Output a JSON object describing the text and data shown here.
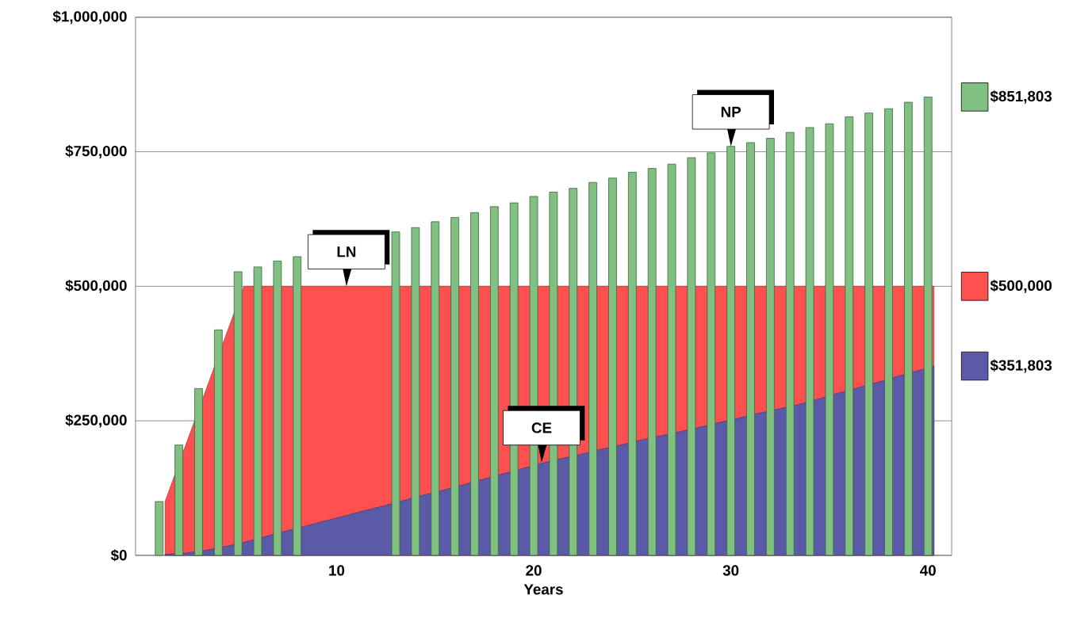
{
  "chart_data": {
    "type": "bar",
    "xlabel": "Years",
    "x": [
      1,
      2,
      3,
      4,
      5,
      6,
      7,
      8,
      9,
      10,
      11,
      12,
      13,
      14,
      15,
      16,
      17,
      18,
      19,
      20,
      21,
      22,
      23,
      24,
      25,
      26,
      27,
      28,
      29,
      30,
      31,
      32,
      33,
      34,
      35,
      36,
      37,
      38,
      39,
      40
    ],
    "xlim": [
      -0.2,
      41.2
    ],
    "xticks": [
      10,
      20,
      30,
      40
    ],
    "ylim": [
      0,
      1000000
    ],
    "yticks": [
      {
        "value": 0,
        "label": "$0"
      },
      {
        "value": 250000,
        "label": "$250,000"
      },
      {
        "value": 500000,
        "label": "$500,000"
      },
      {
        "value": 750000,
        "label": "$750,000"
      },
      {
        "value": 1000000,
        "label": "$1,000,000"
      }
    ],
    "grid": "y",
    "legend": "right",
    "series": [
      {
        "name": "$500,000",
        "type": "area",
        "color": "#ff5050",
        "x": [
          1.3,
          2.3,
          3.3,
          4.3,
          5.3,
          6.3,
          7.3,
          8.3,
          9.3,
          10.3,
          11.3,
          12.3,
          13.3,
          14.3,
          15.3,
          16.3,
          17.3,
          18.3,
          19.3,
          20.3,
          21.3,
          22.3,
          23.3,
          24.3,
          25.3,
          26.3,
          27.3,
          28.3,
          29.3,
          30.3,
          31.3,
          32.3,
          33.3,
          34.3,
          35.3,
          36.3,
          37.3,
          38.3,
          39.3,
          40.3
        ],
        "values": [
          100000,
          200000,
          300000,
          400000,
          500000,
          500000,
          500000,
          500000,
          500000,
          500000,
          500000,
          500000,
          500000,
          500000,
          500000,
          500000,
          500000,
          500000,
          500000,
          500000,
          500000,
          500000,
          500000,
          500000,
          500000,
          500000,
          500000,
          500000,
          500000,
          500000,
          500000,
          500000,
          500000,
          500000,
          500000,
          500000,
          500000,
          500000,
          500000,
          500000
        ]
      },
      {
        "name": "$351,803",
        "type": "area",
        "color": "#5a5aa8",
        "x": [
          1.3,
          2.3,
          3.3,
          4.3,
          5.3,
          6.3,
          7.3,
          8.3,
          9.3,
          10.3,
          11.3,
          12.3,
          13.3,
          14.3,
          15.3,
          16.3,
          17.3,
          18.3,
          19.3,
          20.3,
          21.3,
          22.3,
          23.3,
          24.3,
          25.3,
          26.3,
          27.3,
          28.3,
          29.3,
          30.3,
          31.3,
          32.3,
          33.3,
          34.3,
          35.3,
          36.3,
          37.3,
          38.3,
          39.3,
          40.3
        ],
        "values": [
          2000,
          4000,
          9000,
          16000,
          24000,
          34000,
          44000,
          53000,
          63000,
          72000,
          82000,
          91000,
          101000,
          111000,
          120000,
          130000,
          140000,
          150000,
          160000,
          170000,
          179000,
          187000,
          196000,
          204000,
          213000,
          221000,
          229000,
          237000,
          246000,
          254000,
          263000,
          271000,
          279000,
          289000,
          300000,
          310000,
          320000,
          331000,
          341000,
          351803
        ]
      },
      {
        "name": "$851,803",
        "color": "#80c080",
        "values": [
          100000,
          205000,
          310000,
          419000,
          527000,
          536000,
          547000,
          555000,
          null,
          null,
          null,
          null,
          601000,
          609000,
          620000,
          628000,
          637000,
          648000,
          655000,
          667000,
          675000,
          682000,
          693000,
          701000,
          712000,
          719000,
          727000,
          739000,
          748000,
          760000,
          767000,
          775000,
          786000,
          795000,
          802000,
          815000,
          822000,
          830000,
          842000,
          851803
        ]
      }
    ],
    "annotations": [
      {
        "text": "LN",
        "x": 10.5,
        "y": 500000
      },
      {
        "text": "CE",
        "x": 20.4,
        "y": 173000
      },
      {
        "text": "NP",
        "x": 30,
        "y": 760000
      }
    ]
  }
}
